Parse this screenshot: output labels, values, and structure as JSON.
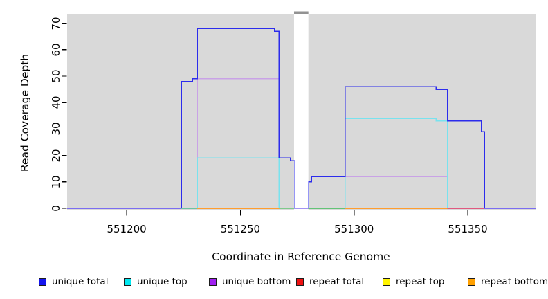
{
  "figure": {
    "background": "#ffffff",
    "plot_background": "#d9d9d9",
    "gap_marker_color": "#929292",
    "tick_color": "#000000"
  },
  "axes": {
    "x_title": "Coordinate in Reference Genome",
    "y_title": "Read Coverage Depth",
    "x_ticks": [
      "551200",
      "551250",
      "551300",
      "551350"
    ],
    "x_tick_values": [
      551200,
      551250,
      551300,
      551350
    ],
    "y_ticks": [
      "0",
      "10",
      "20",
      "30",
      "40",
      "50",
      "60",
      "70"
    ],
    "y_tick_values": [
      0,
      10,
      20,
      30,
      40,
      50,
      60,
      70
    ]
  },
  "legend": {
    "items": [
      {
        "label": "unique total",
        "color": "#1414ee"
      },
      {
        "label": "unique top",
        "color": "#00e8f0"
      },
      {
        "label": "unique bottom",
        "color": "#a020f0"
      },
      {
        "label": "repeat total",
        "color": "#ee1111"
      },
      {
        "label": "repeat top",
        "color": "#fff500"
      },
      {
        "label": "repeat bottom",
        "color": "#ffa000"
      }
    ]
  },
  "chart_data": {
    "type": "line",
    "subtype": "coverage-step",
    "title": "",
    "xlabel": "Coordinate in Reference Genome",
    "ylabel": "Read Coverage Depth",
    "xlim": [
      551173.8,
      551379.8
    ],
    "ylim": [
      0,
      73.5
    ],
    "grid": false,
    "legend_position": "bottom",
    "gap_region": {
      "x1": 551273.6,
      "x2": 551279.9
    },
    "series": [
      {
        "name": "unique bottom",
        "color": "#c9a2e6",
        "paths": [
          [
            [
              551231,
              0
            ],
            [
              551231,
              49
            ],
            [
              551267,
              49
            ],
            [
              551267,
              0
            ]
          ],
          [
            [
              551296,
              0
            ],
            [
              551296,
              12
            ],
            [
              551341,
              12
            ],
            [
              551341,
              0
            ]
          ]
        ]
      },
      {
        "name": "unique top",
        "color": "#79e2ee",
        "paths": [
          [
            [
              551231,
              0
            ],
            [
              551231,
              19
            ],
            [
              551267,
              19
            ],
            [
              551267,
              0
            ]
          ],
          [
            [
              551296,
              0
            ],
            [
              551296,
              34
            ],
            [
              551336,
              34
            ],
            [
              551336,
              33
            ],
            [
              551341,
              33
            ],
            [
              551341,
              0
            ]
          ]
        ]
      },
      {
        "name": "unique total",
        "color": "#2c2cec",
        "paths": [
          [
            [
              551173.8,
              0
            ],
            [
              551224,
              0
            ],
            [
              551224,
              48
            ],
            [
              551229,
              48
            ],
            [
              551229,
              49
            ],
            [
              551231,
              49
            ],
            [
              551231,
              68
            ],
            [
              551265,
              68
            ],
            [
              551265,
              67
            ],
            [
              551267,
              67
            ],
            [
              551267,
              19
            ],
            [
              551272,
              19
            ],
            [
              551272,
              18
            ],
            [
              551274,
              18
            ],
            [
              551274,
              0
            ],
            [
              551280,
              0
            ],
            [
              551280,
              10
            ],
            [
              551281.3,
              10
            ],
            [
              551281.3,
              12
            ],
            [
              551296,
              12
            ],
            [
              551296,
              46
            ],
            [
              551336,
              46
            ],
            [
              551336,
              45
            ],
            [
              551341,
              45
            ],
            [
              551341,
              33
            ],
            [
              551356,
              33
            ],
            [
              551356,
              29
            ],
            [
              551357.3,
              29
            ],
            [
              551357.3,
              0
            ],
            [
              551379.8,
              0
            ]
          ]
        ]
      },
      {
        "name": "repeat total",
        "color": "#e0597f",
        "paths": [
          [
            [
              551341,
              0
            ],
            [
              551357.3,
              0
            ]
          ]
        ]
      },
      {
        "name": "repeat top",
        "color": "#e6e64a",
        "paths": []
      },
      {
        "name": "repeat bottom",
        "color": "#ff9d2e",
        "paths": [
          [
            [
              551231,
              0
            ],
            [
              551267,
              0
            ]
          ],
          [
            [
              551296,
              0
            ],
            [
              551341,
              0
            ]
          ]
        ]
      }
    ],
    "baseline_segments": [
      {
        "x1": 551173.8,
        "x2": 551224,
        "color": "#7b6df1"
      },
      {
        "x1": 551224,
        "x2": 551231,
        "color": "#6cc3a1"
      },
      {
        "x1": 551231,
        "x2": 551267,
        "color": "#ff9d2e"
      },
      {
        "x1": 551267,
        "x2": 551273.6,
        "color": "#7fc98b"
      },
      {
        "x1": 551273.6,
        "x2": 551279.9,
        "color": "#a493f2"
      },
      {
        "x1": 551279.9,
        "x2": 551296,
        "color": "#63c377"
      },
      {
        "x1": 551296,
        "x2": 551341,
        "color": "#ff9d2e"
      },
      {
        "x1": 551341,
        "x2": 551357.3,
        "color": "#e0597f"
      },
      {
        "x1": 551357.3,
        "x2": 551379.8,
        "color": "#7b6df1"
      }
    ]
  }
}
